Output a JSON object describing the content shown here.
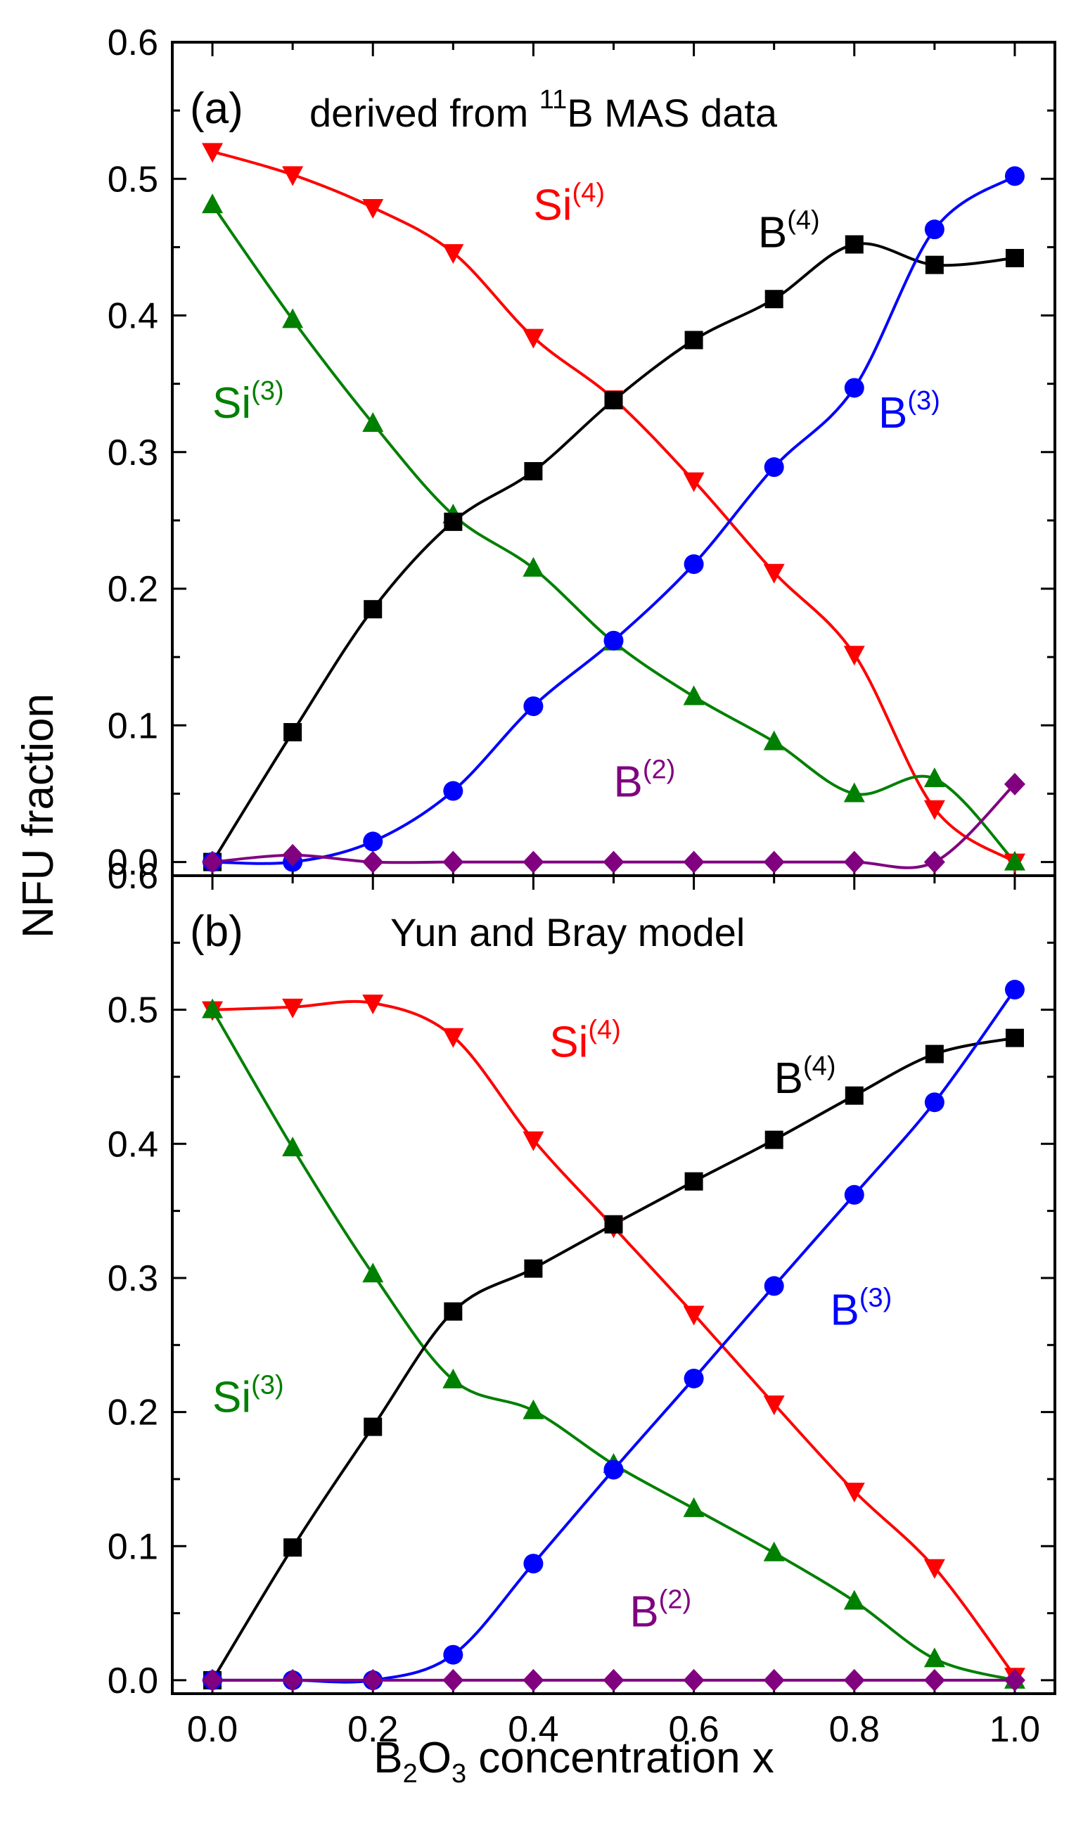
{
  "figure": {
    "ylabel": "NFU fraction",
    "xlabel_parts": {
      "b": "B",
      "sub1": "2",
      "o": "O",
      "sub2": "3",
      "rest": " concentration x"
    },
    "xlim": [
      -0.05,
      1.05
    ],
    "x_ticks": [
      0.0,
      0.2,
      0.4,
      0.6,
      0.8,
      1.0
    ],
    "x_tick_labels": [
      "0.0",
      "0.2",
      "0.4",
      "0.6",
      "0.8",
      "1.0"
    ],
    "ylim": [
      -0.01,
      0.6
    ],
    "y_ticks": [
      0.0,
      0.1,
      0.2,
      0.3,
      0.4,
      0.5,
      0.6
    ],
    "y_tick_labels": [
      "0.0",
      "0.1",
      "0.2",
      "0.3",
      "0.4",
      "0.5",
      "0.6"
    ]
  },
  "colors": {
    "B4": "#000000",
    "B3": "#0000ff",
    "B2": "#800080",
    "Si4": "#ff0000",
    "Si3": "#008000"
  },
  "chart_data": [
    {
      "type": "line",
      "panel": "(a)",
      "title_parts": {
        "pre": "derived from ",
        "sup": "11",
        "post": "B MAS data"
      },
      "x": [
        0.0,
        0.1,
        0.2,
        0.3,
        0.4,
        0.5,
        0.6,
        0.7,
        0.8,
        0.9,
        1.0
      ],
      "series": [
        {
          "key": "Si4",
          "name": "Si(4)",
          "marker": "triangle-down",
          "values": [
            0.52,
            0.503,
            0.479,
            0.446,
            0.384,
            0.339,
            0.279,
            0.212,
            0.152,
            0.039,
            0.0
          ]
        },
        {
          "key": "Si3",
          "name": "Si(3)",
          "marker": "triangle-up",
          "values": [
            0.481,
            0.397,
            0.321,
            0.254,
            0.215,
            0.161,
            0.121,
            0.088,
            0.05,
            0.061,
            0.0
          ]
        },
        {
          "key": "B4",
          "name": "B(4)",
          "marker": "square",
          "values": [
            0.0,
            0.095,
            0.185,
            0.249,
            0.286,
            0.338,
            0.382,
            0.412,
            0.452,
            0.437,
            0.442
          ]
        },
        {
          "key": "B3",
          "name": "B(3)",
          "marker": "circle",
          "values": [
            0.0,
            0.0,
            0.015,
            0.052,
            0.114,
            0.162,
            0.218,
            0.289,
            0.347,
            0.463,
            0.502
          ]
        },
        {
          "key": "B2",
          "name": "B(2)",
          "marker": "diamond",
          "values": [
            0.0,
            0.005,
            0.0,
            0.0,
            0.0,
            0.0,
            0.0,
            0.0,
            0.0,
            0.0,
            0.057
          ]
        }
      ],
      "labels": [
        {
          "key": "Si4",
          "base": "Si",
          "sup": "(4)",
          "x": 0.4,
          "y": 0.47
        },
        {
          "key": "Si3",
          "base": "Si",
          "sup": "(3)",
          "x": 0.0,
          "y": 0.325
        },
        {
          "key": "B4",
          "base": "B",
          "sup": "(4)",
          "x": 0.68,
          "y": 0.45
        },
        {
          "key": "B3",
          "base": "B",
          "sup": "(3)",
          "x": 0.83,
          "y": 0.318
        },
        {
          "key": "B2",
          "base": "B",
          "sup": "(2)",
          "x": 0.5,
          "y": 0.048
        }
      ]
    },
    {
      "type": "line",
      "panel": "(b)",
      "title": "Yun and Bray model",
      "x": [
        0.0,
        0.1,
        0.2,
        0.3,
        0.4,
        0.5,
        0.6,
        0.7,
        0.8,
        0.9,
        1.0
      ],
      "series": [
        {
          "key": "Si4",
          "name": "Si(4)",
          "marker": "triangle-down",
          "values": [
            0.5,
            0.502,
            0.505,
            0.48,
            0.403,
            0.338,
            0.273,
            0.206,
            0.141,
            0.084,
            0.003
          ]
        },
        {
          "key": "Si3",
          "name": "Si(3)",
          "marker": "triangle-up",
          "values": [
            0.5,
            0.397,
            0.303,
            0.224,
            0.201,
            0.161,
            0.128,
            0.095,
            0.059,
            0.016,
            0.0
          ]
        },
        {
          "key": "B4",
          "name": "B(4)",
          "marker": "square",
          "values": [
            0.0,
            0.099,
            0.189,
            0.275,
            0.307,
            0.34,
            0.372,
            0.403,
            0.436,
            0.467,
            0.479
          ]
        },
        {
          "key": "B3",
          "name": "B(3)",
          "marker": "circle",
          "values": [
            0.0,
            0.0,
            0.0,
            0.019,
            0.087,
            0.157,
            0.225,
            0.294,
            0.362,
            0.431,
            0.515
          ]
        },
        {
          "key": "B2",
          "name": "B(2)",
          "marker": "diamond",
          "values": [
            0.0,
            0.0,
            0.0,
            0.0,
            0.0,
            0.0,
            0.0,
            0.0,
            0.0,
            0.0,
            0.0
          ]
        }
      ],
      "labels": [
        {
          "key": "Si4",
          "base": "Si",
          "sup": "(4)",
          "x": 0.42,
          "y": 0.465
        },
        {
          "key": "Si3",
          "base": "Si",
          "sup": "(3)",
          "x": 0.0,
          "y": 0.2
        },
        {
          "key": "B4",
          "base": "B",
          "sup": "(4)",
          "x": 0.7,
          "y": 0.438
        },
        {
          "key": "B3",
          "base": "B",
          "sup": "(3)",
          "x": 0.77,
          "y": 0.265
        },
        {
          "key": "B2",
          "base": "B",
          "sup": "(2)",
          "x": 0.52,
          "y": 0.04
        }
      ]
    }
  ]
}
